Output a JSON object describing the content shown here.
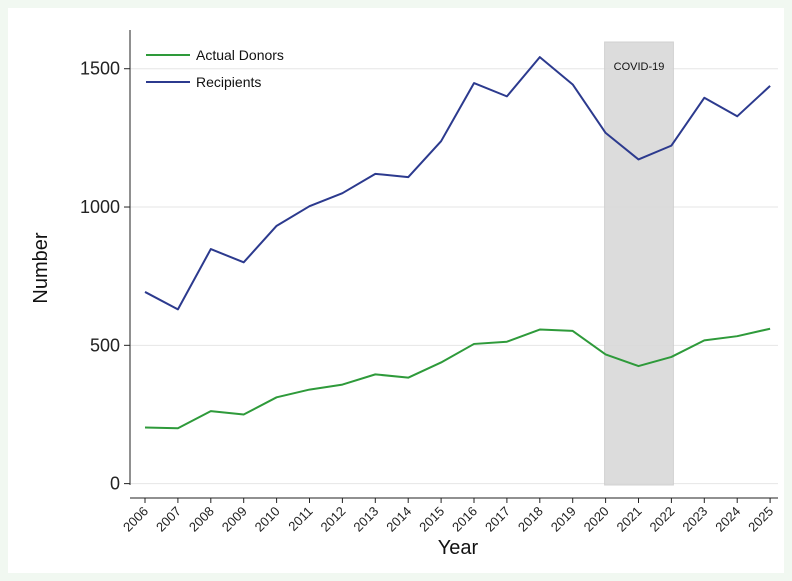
{
  "chart_data": {
    "type": "line",
    "title": "",
    "xlabel": "Year",
    "ylabel": "Number",
    "x": [
      "2006",
      "2007",
      "2008",
      "2009",
      "2010",
      "2011",
      "2012",
      "2013",
      "2014",
      "2015",
      "2016",
      "2017",
      "2018",
      "2019",
      "2020",
      "2021",
      "2022",
      "2023",
      "2024",
      "2025"
    ],
    "series": [
      {
        "name": "Actual Donors",
        "color": "#2e9a3a",
        "values": [
          203,
          200,
          262,
          250,
          312,
          340,
          358,
          395,
          383,
          438,
          505,
          513,
          557,
          552,
          467,
          425,
          458,
          518,
          533,
          560
        ]
      },
      {
        "name": "Recipients",
        "color": "#2c3a8e",
        "values": [
          693,
          630,
          848,
          800,
          932,
          1003,
          1050,
          1120,
          1108,
          1238,
          1448,
          1400,
          1542,
          1443,
          1268,
          1172,
          1222,
          1395,
          1328,
          1438
        ]
      }
    ],
    "yticks": [
      0,
      500,
      1000,
      1500
    ],
    "ylim": [
      -5,
      1640
    ],
    "grid": "horizontal",
    "legend_position": "top-left",
    "annotations": [
      {
        "label": "COVID-19",
        "x_start": "2020",
        "x_end": "2022",
        "color": "#d9d9d9"
      }
    ]
  }
}
